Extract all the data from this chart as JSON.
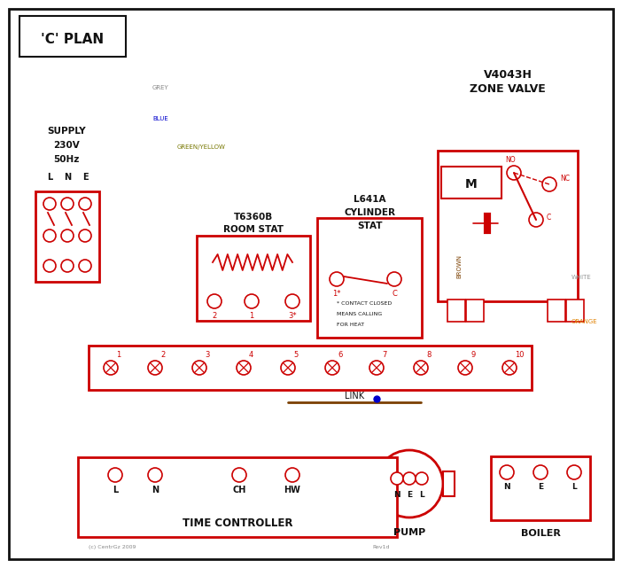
{
  "title": "'C' PLAN",
  "red": "#cc0000",
  "blue": "#0000cc",
  "green": "#007700",
  "grey": "#888888",
  "brown": "#7B3F00",
  "orange": "#E08000",
  "black": "#111111",
  "olive": "#777700",
  "white_wire": "#999999",
  "zone_valve_labels": [
    "V4043H",
    "ZONE VALVE"
  ],
  "room_stat_labels": [
    "T6360B",
    "ROOM STAT"
  ],
  "cyl_stat_labels": [
    "L641A",
    "CYLINDER",
    "STAT"
  ],
  "tc_label": "TIME CONTROLLER",
  "tc_terminals": [
    "L",
    "N",
    "CH",
    "HW"
  ],
  "pump_terminals": [
    "N",
    "E",
    "L"
  ],
  "boiler_terminals": [
    "N",
    "E",
    "L"
  ],
  "terminal_nums": [
    "1",
    "2",
    "3",
    "4",
    "5",
    "6",
    "7",
    "8",
    "9",
    "10"
  ],
  "pump_label": "PUMP",
  "boiler_label": "BOILER",
  "link_label": "LINK",
  "supply_lines": [
    "SUPPLY",
    "230V",
    "50Hz"
  ],
  "lne": [
    "L",
    "N",
    "E"
  ],
  "copyright": "(c) CentrGz 2009",
  "rev": "Rev1d",
  "grey_label": "GREY",
  "blue_label": "BLUE",
  "green_yellow_label": "GREEN/YELLOW",
  "brown_label": "BROWN",
  "white_label": "WHITE",
  "orange_label": "ORANGE"
}
